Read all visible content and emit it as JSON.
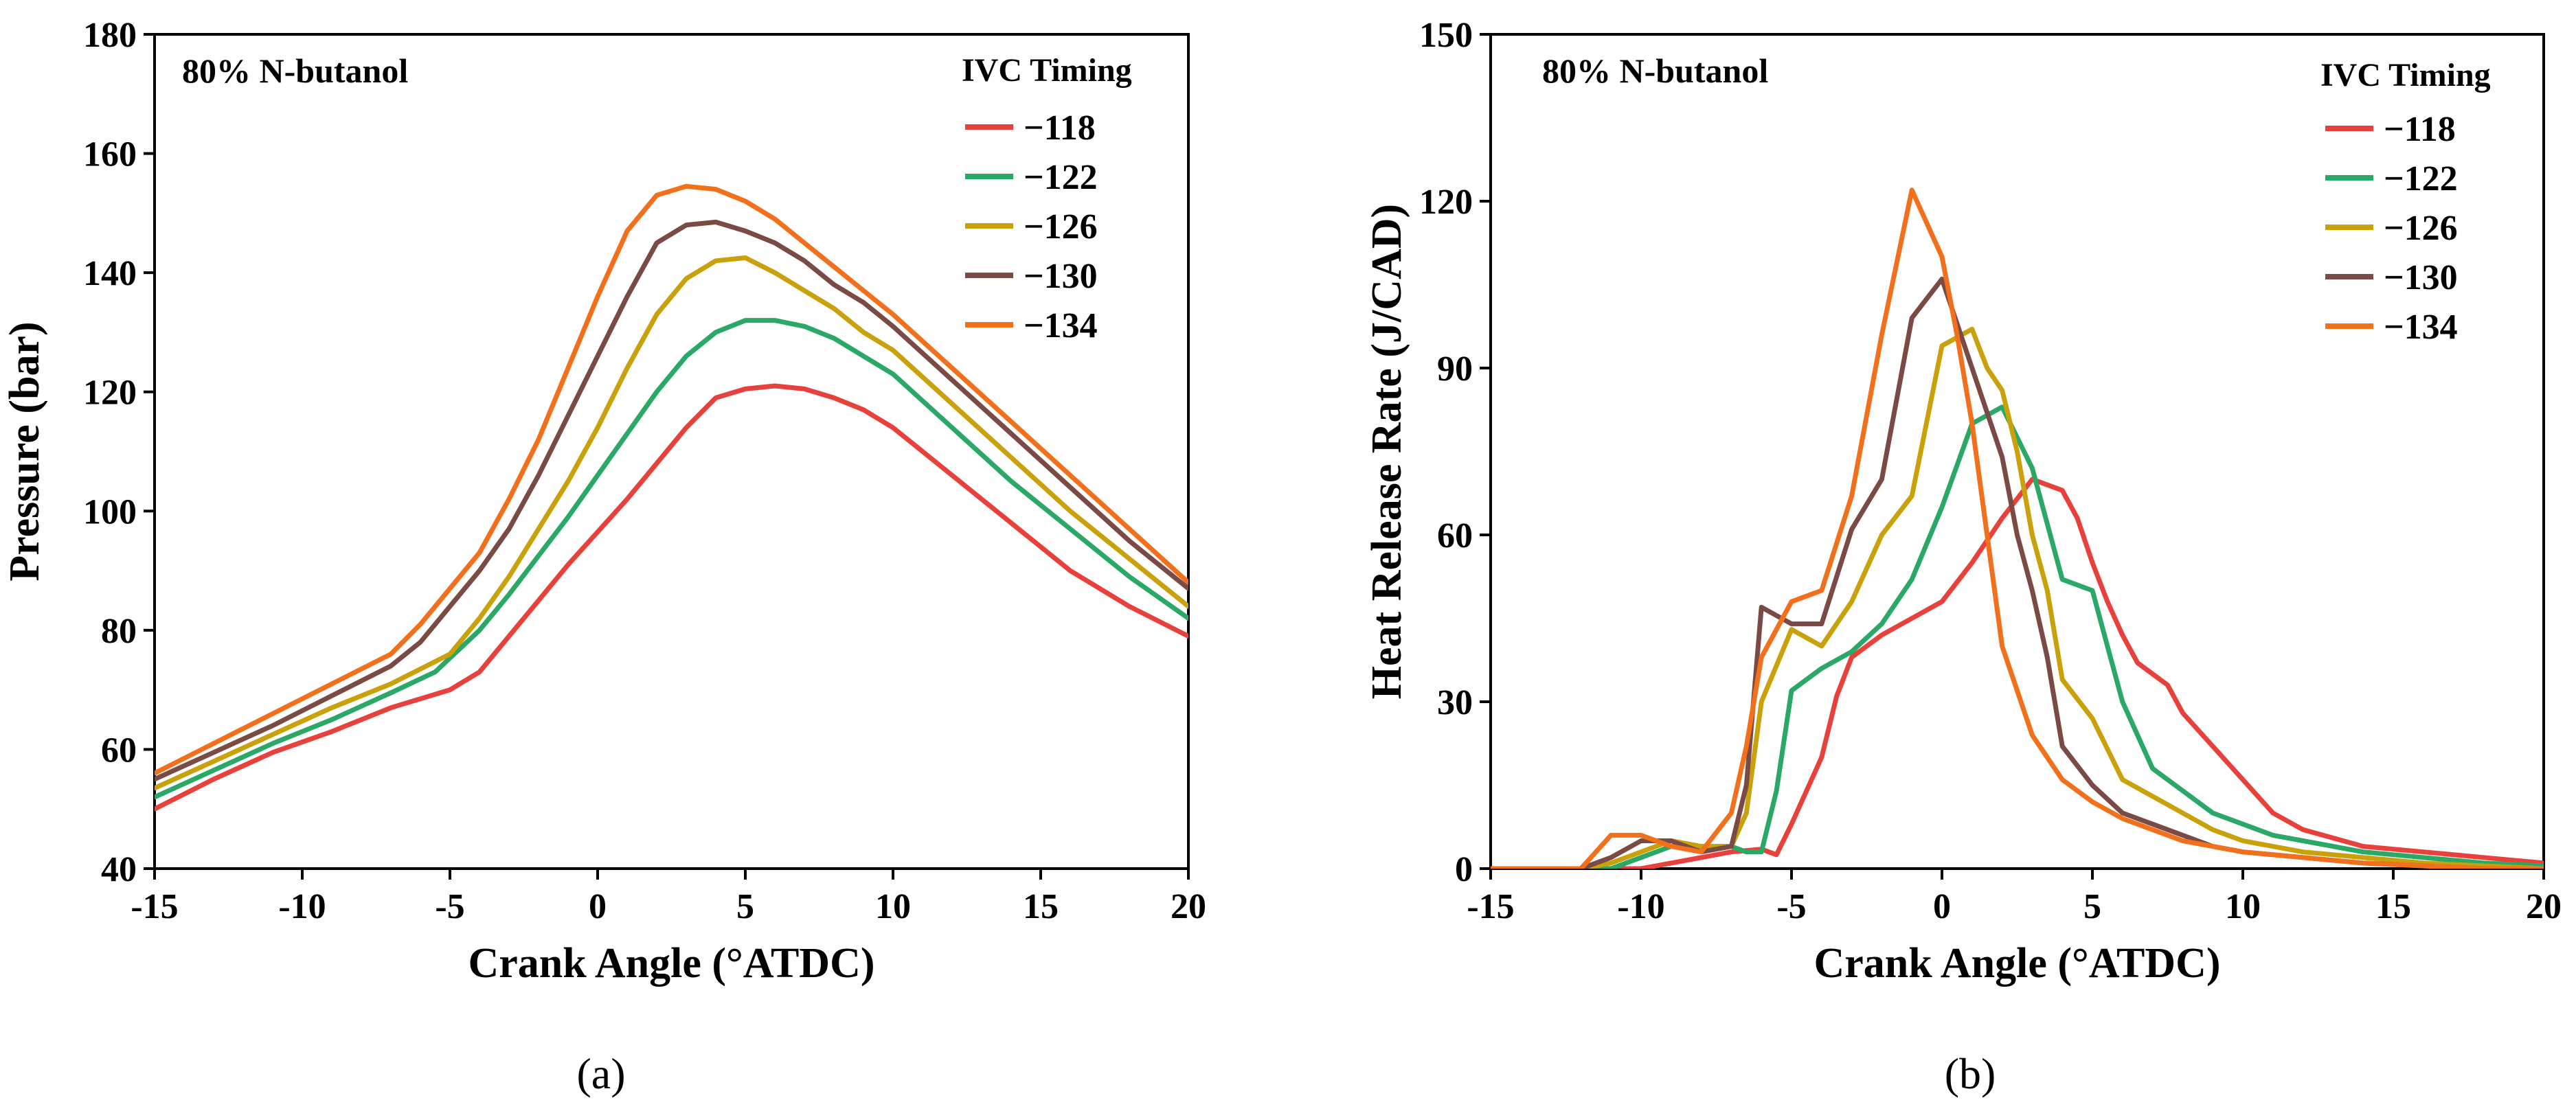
{
  "chart_data": [
    {
      "type": "line",
      "panel_label": "(a)",
      "annotation": "80% N-butanol",
      "xlabel": "Crank Angle (°ATDC)",
      "ylabel": "Pressure (bar)",
      "xlim": [
        -15,
        20
      ],
      "ylim": [
        40,
        180
      ],
      "xticks": [
        -15,
        -10,
        -5,
        0,
        5,
        10,
        15,
        20
      ],
      "yticks": [
        40,
        60,
        80,
        100,
        120,
        140,
        160,
        180
      ],
      "legend_title": "IVC Timing",
      "legend_position": "top-right",
      "series": [
        {
          "name": "−118",
          "color": "#e8403b",
          "x": [
            -15,
            -13,
            -11,
            -9,
            -7,
            -5,
            -4,
            -3,
            -2,
            -1,
            0,
            1,
            2,
            3,
            4,
            5,
            6,
            7,
            8,
            9,
            10,
            12,
            14,
            16,
            18,
            20
          ],
          "y": [
            50,
            55,
            59.5,
            63,
            67,
            70,
            73,
            79,
            85,
            91,
            96.5,
            102,
            108,
            114,
            119,
            120.5,
            121,
            120.5,
            119,
            117,
            114,
            106,
            98,
            90,
            84,
            79
          ]
        },
        {
          "name": "−122",
          "color": "#2aa866",
          "x": [
            -15,
            -13,
            -11,
            -9,
            -7,
            -5.5,
            -4,
            -3,
            -2,
            -1,
            0,
            1,
            2,
            3,
            4,
            5,
            6,
            7,
            8,
            9,
            10,
            12,
            14,
            16,
            18,
            20
          ],
          "y": [
            52,
            56.5,
            61,
            65,
            69.5,
            73,
            80,
            86,
            92.5,
            99,
            106,
            113,
            120,
            126,
            130,
            132,
            132,
            131,
            129,
            126,
            123,
            114,
            105,
            97,
            89,
            82
          ]
        },
        {
          "name": "−126",
          "color": "#c9a10a",
          "x": [
            -15,
            -13,
            -11,
            -9,
            -7,
            -5,
            -4,
            -3,
            -2,
            -1,
            0,
            1,
            2,
            3,
            4,
            5,
            6,
            7,
            8,
            9,
            10,
            12,
            14,
            16,
            18,
            20
          ],
          "y": [
            53.5,
            58,
            62.5,
            67,
            71,
            76,
            82,
            89,
            97,
            105,
            114,
            124,
            133,
            139,
            142,
            142.5,
            140,
            137,
            134,
            130,
            127,
            118,
            109,
            100,
            92,
            84
          ]
        },
        {
          "name": "−130",
          "color": "#7a4a44",
          "x": [
            -15,
            -13,
            -11,
            -9,
            -7,
            -6,
            -5,
            -4,
            -3,
            -2,
            -1,
            0,
            1,
            2,
            3,
            4,
            5,
            6,
            7,
            8,
            9,
            10,
            12,
            14,
            16,
            18,
            20
          ],
          "y": [
            55,
            59.5,
            64,
            69,
            74,
            78,
            84,
            90,
            97,
            106,
            116,
            126,
            136,
            145,
            148,
            148.5,
            147,
            145,
            142,
            138,
            135,
            131,
            122,
            113,
            104,
            95,
            87
          ]
        },
        {
          "name": "−134",
          "color": "#f2701c",
          "x": [
            -15,
            -13,
            -11,
            -9,
            -7,
            -6,
            -5,
            -4,
            -3,
            -2,
            -1,
            0,
            1,
            2,
            3,
            4,
            5,
            6,
            7,
            8,
            9,
            10,
            12,
            14,
            16,
            18,
            20
          ],
          "y": [
            56,
            61,
            66,
            71,
            76,
            81,
            87,
            93,
            102,
            112,
            124,
            136,
            147,
            153,
            154.5,
            154,
            152,
            149,
            145,
            141,
            137,
            133,
            124,
            115,
            106,
            97,
            88
          ]
        }
      ]
    },
    {
      "type": "line",
      "panel_label": "(b)",
      "annotation": "80% N-butanol",
      "xlabel": "Crank Angle (°ATDC)",
      "ylabel": "Heat Release Rate (J/CAD)",
      "xlim": [
        -15,
        20
      ],
      "ylim": [
        0,
        150
      ],
      "xticks": [
        -15,
        -10,
        -5,
        0,
        5,
        10,
        15,
        20
      ],
      "yticks": [
        0,
        30,
        60,
        90,
        120,
        150
      ],
      "legend_title": "IVC Timing",
      "legend_position": "top-right",
      "series": [
        {
          "name": "−118",
          "color": "#e8403b",
          "x": [
            -15,
            -11,
            -10,
            -9,
            -8,
            -7,
            -6,
            -5.5,
            -5,
            -4,
            -3.5,
            -3,
            -2,
            -1,
            0,
            1,
            2,
            3,
            4,
            4.5,
            5,
            5.5,
            6,
            6.5,
            7,
            7.5,
            8,
            9,
            10,
            11,
            12,
            14,
            16,
            18,
            20
          ],
          "y": [
            0,
            0,
            0,
            1,
            2,
            3,
            3.5,
            2.5,
            8,
            20,
            31,
            38,
            42,
            45,
            48,
            55,
            63,
            70,
            68,
            63,
            55,
            48,
            42,
            37,
            35,
            33,
            28,
            22,
            16,
            10,
            7,
            4,
            3,
            2,
            1
          ]
        },
        {
          "name": "−122",
          "color": "#2aa866",
          "x": [
            -15,
            -11,
            -10,
            -9,
            -8,
            -7,
            -6.5,
            -6,
            -5.5,
            -5,
            -4.5,
            -4,
            -3,
            -2,
            -1,
            0,
            1,
            2,
            3,
            4,
            5,
            6,
            7,
            8,
            9,
            10,
            11,
            12,
            14,
            16,
            18,
            20
          ],
          "y": [
            0,
            0,
            2,
            4,
            4,
            4,
            3,
            3,
            14,
            32,
            34,
            36,
            39,
            44,
            52,
            65,
            80,
            83,
            72,
            52,
            50,
            30,
            18,
            14,
            10,
            8,
            6,
            5,
            3,
            2,
            1,
            0.5
          ]
        },
        {
          "name": "−126",
          "color": "#c9a10a",
          "x": [
            -15,
            -12,
            -11,
            -10,
            -9,
            -8,
            -7,
            -6.5,
            -6,
            -5,
            -4,
            -3,
            -2,
            -1,
            0,
            1,
            1.5,
            2,
            2.5,
            3,
            3.5,
            4,
            5,
            6,
            7,
            8,
            9,
            10,
            12,
            14,
            16,
            18,
            20
          ],
          "y": [
            0,
            0,
            1,
            3,
            5,
            4,
            4,
            10,
            30,
            43,
            40,
            48,
            60,
            67,
            94,
            97,
            90,
            86,
            75,
            60,
            50,
            34,
            27,
            16,
            13,
            10,
            7,
            5,
            3,
            2,
            1,
            0.5,
            0
          ]
        },
        {
          "name": "−130",
          "color": "#7a4a44",
          "x": [
            -15,
            -12,
            -11,
            -10,
            -9,
            -8,
            -7,
            -6.5,
            -6,
            -5,
            -4,
            -3,
            -2,
            -1,
            0,
            1,
            1.5,
            2,
            2.5,
            3,
            3.5,
            4,
            5,
            6,
            7,
            8,
            9,
            10,
            12,
            14,
            16,
            18,
            20
          ],
          "y": [
            0,
            0,
            2,
            5,
            5,
            3,
            4,
            15,
            47,
            44,
            44,
            61,
            70,
            99,
            106,
            90,
            82,
            74,
            60,
            50,
            38,
            22,
            15,
            10,
            8,
            6,
            4,
            3,
            2,
            1,
            0.5,
            0,
            0
          ]
        },
        {
          "name": "−134",
          "color": "#f2701c",
          "x": [
            -15,
            -12,
            -11,
            -10,
            -9,
            -8,
            -7,
            -6.5,
            -6,
            -5,
            -4,
            -3,
            -2,
            -1,
            0,
            0.5,
            1,
            1.5,
            2,
            2.5,
            3,
            3.5,
            4,
            5,
            6,
            7,
            8,
            10,
            12,
            14,
            16,
            18,
            20
          ],
          "y": [
            0,
            0,
            6,
            6,
            4,
            3,
            10,
            22,
            38,
            48,
            50,
            67,
            96,
            122,
            110,
            96,
            80,
            60,
            40,
            32,
            24,
            20,
            16,
            12,
            9,
            7,
            5,
            3,
            2,
            1,
            0.5,
            0,
            0
          ]
        }
      ]
    }
  ]
}
